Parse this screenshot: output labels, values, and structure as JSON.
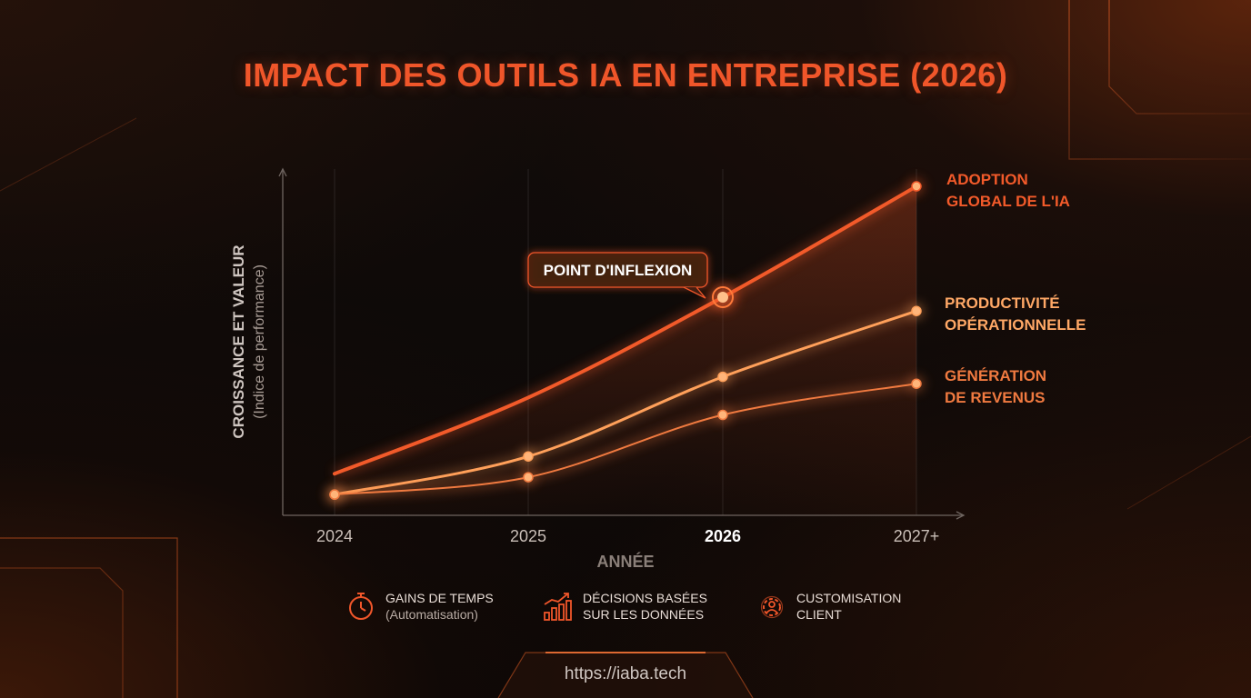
{
  "title": "IMPACT DES OUTILS IA EN ENTREPRISE (2026)",
  "colors": {
    "accent": "#f0562a",
    "adoption": "#f25a2a",
    "productivite": "#ffa05a",
    "revenus": "#f07a40",
    "text_muted": "#b9aca4"
  },
  "chart_data": {
    "type": "line",
    "title": "IMPACT DES OUTILS IA EN ENTREPRISE (2026)",
    "xlabel": "ANNÉE",
    "ylabel": "CROISSANCE ET VALEUR",
    "ylabel_sub": "(Indice de performance)",
    "categories": [
      "2024",
      "2025",
      "2026",
      "2027+"
    ],
    "highlighted_category": "2026",
    "ylim": [
      0,
      100
    ],
    "grid": "vertical",
    "series": [
      {
        "name": "ADOPTION GLOBAL DE L'IA",
        "label_lines": [
          "ADOPTION",
          "GLOBAL DE L'IA"
        ],
        "values": [
          12,
          34,
          63,
          95
        ],
        "color": "#f25a2a",
        "shaded": true,
        "markers": [
          false,
          false,
          true,
          true
        ]
      },
      {
        "name": "PRODUCTIVITÉ OPÉRATIONNELLE",
        "label_lines": [
          "PRODUCTIVITÉ",
          "OPÉRATIONNELLE"
        ],
        "values": [
          6,
          17,
          40,
          59
        ],
        "color": "#ffa05a",
        "shaded": false,
        "markers": [
          true,
          true,
          true,
          true
        ]
      },
      {
        "name": "GÉNÉRATION DE REVENUS",
        "label_lines": [
          "GÉNÉRATION",
          "DE REVENUS"
        ],
        "values": [
          6,
          11,
          29,
          38
        ],
        "color": "#f07a40",
        "shaded": false,
        "markers": [
          true,
          true,
          true,
          true
        ]
      }
    ],
    "annotations": [
      {
        "text": "POINT D'INFLEXION",
        "series": 0,
        "category": "2026"
      }
    ]
  },
  "legend": [
    {
      "icon": "stopwatch-icon",
      "line1": "GAINS DE TEMPS",
      "line2": "(Automatisation)"
    },
    {
      "icon": "bar-chart-trend-icon",
      "line1": "DÉCISIONS BASÉES",
      "line2": "SUR LES DONNÉES"
    },
    {
      "icon": "gear-person-icon",
      "line1": "CUSTOMISATION",
      "line2": "CLIENT"
    }
  ],
  "footer": {
    "url": "https://iaba.tech"
  }
}
